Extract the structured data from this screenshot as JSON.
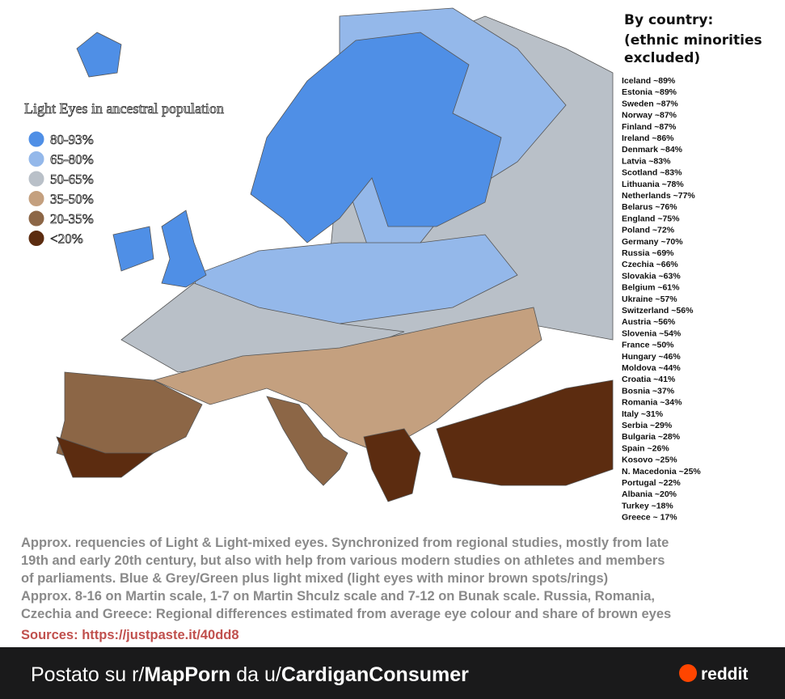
{
  "map": {
    "legend": {
      "title": "Light Eyes in ancestral population",
      "items": [
        {
          "label": "80-93%",
          "color": "#4f8fe6"
        },
        {
          "label": "65-80%",
          "color": "#94b8ea"
        },
        {
          "label": "50-65%",
          "color": "#b9c0c8"
        },
        {
          "label": "35-50%",
          "color": "#c4a07f"
        },
        {
          "label": "20-35%",
          "color": "#8c6646"
        },
        {
          "label": "<20%",
          "color": "#5c2c10"
        }
      ]
    },
    "country_list": {
      "title": "By country:",
      "subtitle": "(ethnic minorities excluded)",
      "entries": [
        "Iceland ~89%",
        "Estonia ~89%",
        "Sweden ~87%",
        "Norway ~87%",
        "Finland ~87%",
        "Ireland ~86%",
        "Denmark ~84%",
        "Latvia ~83%",
        "Scotland ~83%",
        "Lithuania ~78%",
        "Netherlands ~77%",
        "Belarus ~76%",
        "England ~75%",
        "Poland ~72%",
        "Germany ~70%",
        "Russia ~69%",
        "Czechia ~66%",
        "Slovakia ~63%",
        "Belgium ~61%",
        "Ukraine ~57%",
        "Switzerland ~56%",
        "Austria ~56%",
        "Slovenia ~54%",
        "France ~50%",
        "Hungary ~46%",
        "Moldova ~44%",
        "Croatia ~41%",
        "Bosnia ~37%",
        "Romania ~34%",
        "Italy ~31%",
        "Serbia ~29%",
        "Bulgaria ~28%",
        "Spain ~26%",
        "Kosovo ~25%",
        "N. Macedonia ~25%",
        "Portugal ~22%",
        "Albania ~20%",
        "Turkey ~18%",
        "Greece ~ 17%"
      ]
    }
  },
  "caption": {
    "lines": [
      "Approx. requencies of Light & Light-mixed eyes. Synchronized from regional studies, mostly from late",
      "19th and early 20th century, but also with help from various modern studies on athletes and members",
      "of parliaments.  Blue & Grey/Green plus light mixed (light eyes with minor brown spots/rings)",
      "Approx. 8-16 on Martin scale, 1-7 on Martin Shculz scale and 7-12 on Bunak scale. Russia, Romania,",
      "Czechia and Greece: Regional differences estimated from average eye colour and share of brown eyes"
    ],
    "sources": "Sources: https://justpaste.it/40dd8"
  },
  "footer": {
    "prefix": "Postato su r/",
    "subreddit": "MapPorn",
    "middle": " da u/",
    "user": "CardiganConsumer",
    "brand": "reddit"
  }
}
